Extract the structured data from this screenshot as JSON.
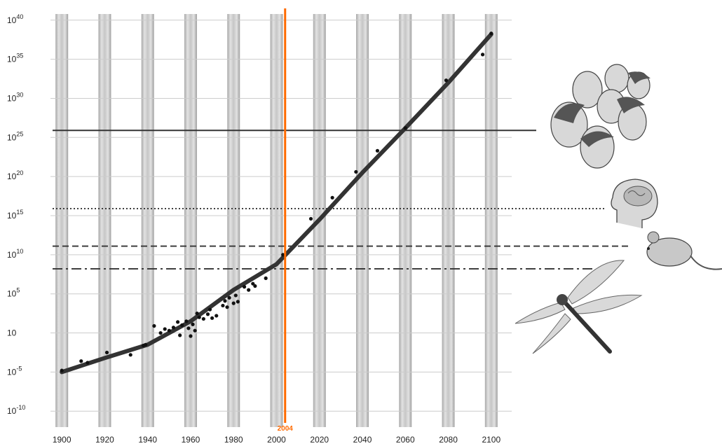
{
  "chart_data": {
    "type": "scatter",
    "title": "",
    "xlabel": "",
    "ylabel": "",
    "x_ticks": [
      1900,
      1920,
      1940,
      1960,
      1980,
      2000,
      2020,
      2040,
      2060,
      2080,
      2100
    ],
    "x_tick_labels": [
      "1900",
      "1920",
      "1940",
      "1960",
      "1980",
      "2000",
      "2020",
      "2040",
      "2060",
      "2080",
      "2100"
    ],
    "y_scale": "log10",
    "y_ticks_exponent": [
      -10,
      -5,
      0,
      5,
      10,
      15,
      20,
      25,
      30,
      35,
      40
    ],
    "y_tick_labels": [
      {
        "base": "10",
        "exp": "-10"
      },
      {
        "base": "10",
        "exp": "-5"
      },
      {
        "base": "10",
        "exp": ""
      },
      {
        "base": "10",
        "exp": "5"
      },
      {
        "base": "10",
        "exp": "10"
      },
      {
        "base": "10",
        "exp": "15"
      },
      {
        "base": "10",
        "exp": "20"
      },
      {
        "base": "10",
        "exp": "25"
      },
      {
        "base": "10",
        "exp": "30"
      },
      {
        "base": "10",
        "exp": "35"
      },
      {
        "base": "10",
        "exp": "40"
      }
    ],
    "xlim": [
      1897,
      2103
    ],
    "ylim_exponent": [
      -11.5,
      41.5
    ],
    "present_marker": {
      "x": 2004,
      "label": "2004",
      "color": "#ff6a00"
    },
    "trend_line": [
      {
        "x": 1900,
        "y": -5.0
      },
      {
        "x": 1920,
        "y": -3.2
      },
      {
        "x": 1940,
        "y": -1.5
      },
      {
        "x": 1960,
        "y": 1.5
      },
      {
        "x": 1980,
        "y": 5.5
      },
      {
        "x": 2000,
        "y": 8.8
      },
      {
        "x": 2020,
        "y": 14.5
      },
      {
        "x": 2040,
        "y": 20.5
      },
      {
        "x": 2060,
        "y": 26.2
      },
      {
        "x": 2080,
        "y": 32.0
      },
      {
        "x": 2100,
        "y": 38.2
      }
    ],
    "points": [
      {
        "x": 1900,
        "y": -4.8
      },
      {
        "x": 1909,
        "y": -3.6
      },
      {
        "x": 1912,
        "y": -3.8
      },
      {
        "x": 1921,
        "y": -2.5
      },
      {
        "x": 1932,
        "y": -2.8
      },
      {
        "x": 1938,
        "y": -1.6
      },
      {
        "x": 1939,
        "y": -1.5
      },
      {
        "x": 1943,
        "y": 0.9
      },
      {
        "x": 1946,
        "y": 0.0
      },
      {
        "x": 1948,
        "y": 0.5
      },
      {
        "x": 1950,
        "y": 0.3
      },
      {
        "x": 1952,
        "y": 0.7
      },
      {
        "x": 1954,
        "y": 1.4
      },
      {
        "x": 1955,
        "y": -0.3
      },
      {
        "x": 1956,
        "y": 1.0
      },
      {
        "x": 1958,
        "y": 1.5
      },
      {
        "x": 1959,
        "y": 0.6
      },
      {
        "x": 1960,
        "y": -0.4
      },
      {
        "x": 1961,
        "y": 1.1
      },
      {
        "x": 1962,
        "y": 0.3
      },
      {
        "x": 1963,
        "y": 2.5
      },
      {
        "x": 1964,
        "y": 2.0
      },
      {
        "x": 1966,
        "y": 1.8
      },
      {
        "x": 1968,
        "y": 2.4
      },
      {
        "x": 1969,
        "y": 3.0
      },
      {
        "x": 1970,
        "y": 1.9
      },
      {
        "x": 1972,
        "y": 2.2
      },
      {
        "x": 1975,
        "y": 3.5
      },
      {
        "x": 1976,
        "y": 4.1
      },
      {
        "x": 1977,
        "y": 3.3
      },
      {
        "x": 1978,
        "y": 4.5
      },
      {
        "x": 1980,
        "y": 3.8
      },
      {
        "x": 1981,
        "y": 4.8
      },
      {
        "x": 1982,
        "y": 4.0
      },
      {
        "x": 1985,
        "y": 5.9
      },
      {
        "x": 1987,
        "y": 5.5
      },
      {
        "x": 1989,
        "y": 6.3
      },
      {
        "x": 1990,
        "y": 6.0
      },
      {
        "x": 1995,
        "y": 7.0
      },
      {
        "x": 2003,
        "y": 10.0
      },
      {
        "x": 2016,
        "y": 14.6
      },
      {
        "x": 2026,
        "y": 17.3
      },
      {
        "x": 2037,
        "y": 20.6
      },
      {
        "x": 2047,
        "y": 23.3
      },
      {
        "x": 2060,
        "y": 26.2
      },
      {
        "x": 2079,
        "y": 32.3
      },
      {
        "x": 2096,
        "y": 35.6
      },
      {
        "x": 2100,
        "y": 38.3
      }
    ],
    "reference_levels": [
      {
        "y": 25.9,
        "style": "solid",
        "icon": "human-heads-icon"
      },
      {
        "y": 15.9,
        "style": "dotted",
        "icon": "human-brain-icon"
      },
      {
        "y": 11.1,
        "style": "dashed",
        "icon": "mouse-icon"
      },
      {
        "y": 8.2,
        "style": "dash-dot",
        "icon": "dragonfly-icon"
      }
    ],
    "colors": {
      "trend": "#333333",
      "points": "#111111",
      "pillars": "#c8c8c8",
      "gridline": "#cccccc",
      "marker": "#ff6a00"
    }
  }
}
